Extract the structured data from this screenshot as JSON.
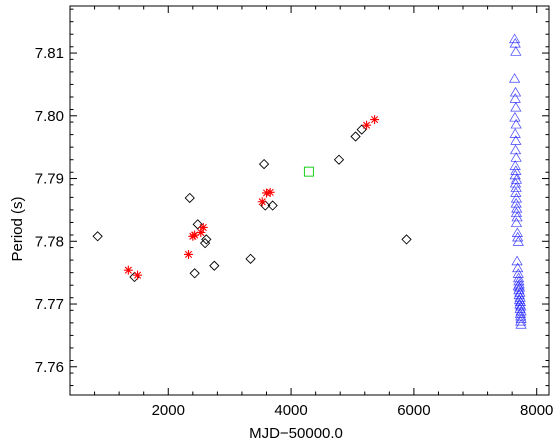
{
  "chart_data": {
    "type": "scatter",
    "title": "",
    "xlabel": "MJD−50000.0",
    "ylabel": "Period (s)",
    "xlim": [
      400,
      8200
    ],
    "ylim": [
      7.7555,
      7.8175
    ],
    "x_ticks": [
      2000,
      4000,
      6000,
      8000
    ],
    "x_tick_labels": [
      "2000",
      "4000",
      "6000",
      "8000"
    ],
    "y_ticks": [
      7.76,
      7.77,
      7.78,
      7.79,
      7.8,
      7.81
    ],
    "y_tick_labels": [
      "7.76",
      "7.77",
      "7.78",
      "7.79",
      "7.80",
      "7.81"
    ],
    "grid": false,
    "series": [
      {
        "marker": "diamond",
        "color": "#000000",
        "points": [
          [
            850,
            7.7808
          ],
          [
            1450,
            7.7743
          ],
          [
            2350,
            7.7869
          ],
          [
            2430,
            7.7749
          ],
          [
            2480,
            7.7827
          ],
          [
            2600,
            7.7797
          ],
          [
            2620,
            7.7803
          ],
          [
            2750,
            7.7761
          ],
          [
            3340,
            7.7772
          ],
          [
            3560,
            7.7923
          ],
          [
            3580,
            7.7857
          ],
          [
            3700,
            7.7857
          ],
          [
            4780,
            7.793
          ],
          [
            5050,
            7.7967
          ],
          [
            5150,
            7.7978
          ],
          [
            5880,
            7.7803
          ]
        ]
      },
      {
        "marker": "asterisk",
        "color": "#ff0000",
        "points": [
          [
            1350,
            7.7754
          ],
          [
            1500,
            7.7746
          ],
          [
            2330,
            7.7779
          ],
          [
            2400,
            7.7808
          ],
          [
            2430,
            7.781
          ],
          [
            2530,
            7.7814
          ],
          [
            2570,
            7.7822
          ],
          [
            3530,
            7.7863
          ],
          [
            3600,
            7.7877
          ],
          [
            3660,
            7.7878
          ],
          [
            5230,
            7.7985
          ],
          [
            5360,
            7.7994
          ]
        ]
      },
      {
        "marker": "square",
        "color": "#00cc00",
        "points": [
          [
            4290,
            7.7911
          ]
        ]
      },
      {
        "marker": "triangle",
        "color": "#0000ff",
        "points": [
          [
            7640,
            7.8122
          ],
          [
            7650,
            7.8115
          ],
          [
            7660,
            7.8102
          ],
          [
            7640,
            7.8059
          ],
          [
            7655,
            7.8037
          ],
          [
            7650,
            7.8027
          ],
          [
            7660,
            7.8013
          ],
          [
            7645,
            7.7997
          ],
          [
            7665,
            7.7986
          ],
          [
            7650,
            7.7971
          ],
          [
            7660,
            7.796
          ],
          [
            7655,
            7.7945
          ],
          [
            7665,
            7.7933
          ],
          [
            7650,
            7.792
          ],
          [
            7660,
            7.7912
          ],
          [
            7650,
            7.7905
          ],
          [
            7670,
            7.7898
          ],
          [
            7655,
            7.7892
          ],
          [
            7665,
            7.7885
          ],
          [
            7660,
            7.7877
          ],
          [
            7670,
            7.7868
          ],
          [
            7665,
            7.786
          ],
          [
            7675,
            7.7852
          ],
          [
            7670,
            7.7845
          ],
          [
            7680,
            7.7838
          ],
          [
            7670,
            7.7829
          ],
          [
            7685,
            7.7813
          ],
          [
            7690,
            7.7806
          ],
          [
            7700,
            7.7799
          ],
          [
            7680,
            7.7768
          ],
          [
            7690,
            7.7757
          ],
          [
            7700,
            7.7748
          ],
          [
            7705,
            7.7741
          ],
          [
            7710,
            7.7736
          ],
          [
            7715,
            7.7731
          ],
          [
            7700,
            7.7728
          ],
          [
            7720,
            7.7726
          ],
          [
            7710,
            7.7722
          ],
          [
            7725,
            7.7718
          ],
          [
            7715,
            7.7714
          ],
          [
            7730,
            7.771
          ],
          [
            7720,
            7.7706
          ],
          [
            7735,
            7.7703
          ],
          [
            7725,
            7.7699
          ],
          [
            7740,
            7.7696
          ],
          [
            7730,
            7.7692
          ],
          [
            7745,
            7.7688
          ],
          [
            7735,
            7.7684
          ],
          [
            7740,
            7.768
          ],
          [
            7745,
            7.7676
          ],
          [
            7740,
            7.7672
          ],
          [
            7745,
            7.7667
          ]
        ]
      }
    ]
  }
}
